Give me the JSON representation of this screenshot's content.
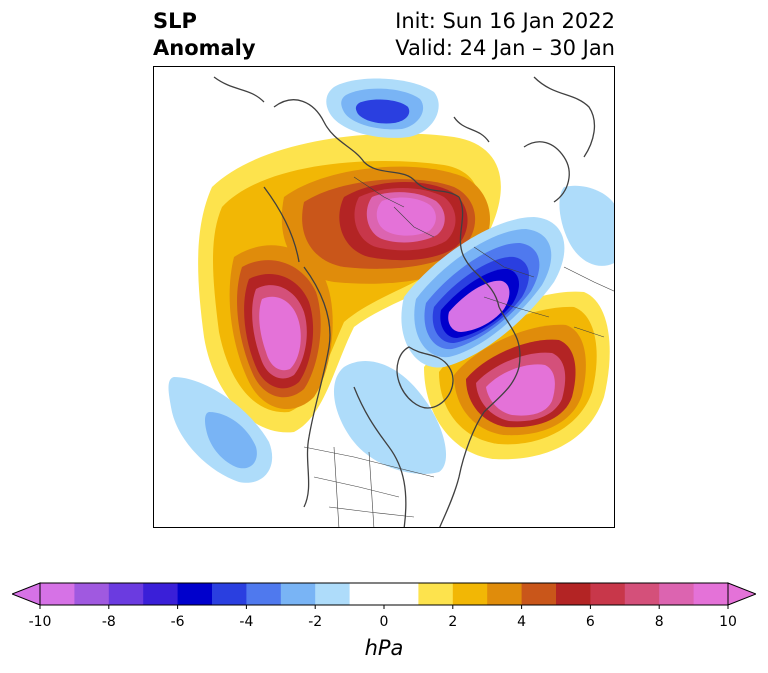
{
  "title": {
    "line1": "SLP",
    "line2": "Anomaly"
  },
  "dates": {
    "init": "Init: Sun 16 Jan 2022",
    "valid": "Valid: 24 Jan – 30 Jan"
  },
  "colorbar": {
    "units": "hPa",
    "tick_labels": [
      "-10",
      "-8",
      "-6",
      "-4",
      "-2",
      "0",
      "2",
      "4",
      "6",
      "8",
      "10"
    ],
    "colors": [
      "#d672e6",
      "#a059e0",
      "#6b3be0",
      "#3a1fd8",
      "#0000cc",
      "#2a3fe0",
      "#4f79ee",
      "#79b4f5",
      "#aedcfa",
      "#ffffff",
      "#ffffff",
      "#fde34d",
      "#f2b705",
      "#e08c0b",
      "#c9561a",
      "#b32424",
      "#c8374a",
      "#d4507a",
      "#dc64b0",
      "#e472d8"
    ]
  },
  "map": {
    "projection": "polar stereographic, North Pole centered",
    "colors": {
      "coast": "#404040",
      "pos1": "#fde34d",
      "pos2": "#f2b705",
      "pos3": "#e08c0b",
      "pos4": "#c9561a",
      "pos5": "#b32424",
      "pos6": "#c8374a",
      "pos7": "#d4507a",
      "pos8": "#dc64b0",
      "pos9": "#e472d8",
      "neg1": "#aedcfa",
      "neg2": "#79b4f5",
      "neg3": "#4f79ee",
      "neg4": "#2a3fe0",
      "neg5": "#0000cc",
      "neg6": "#3a1fd8",
      "neg9": "#d672e6"
    }
  }
}
